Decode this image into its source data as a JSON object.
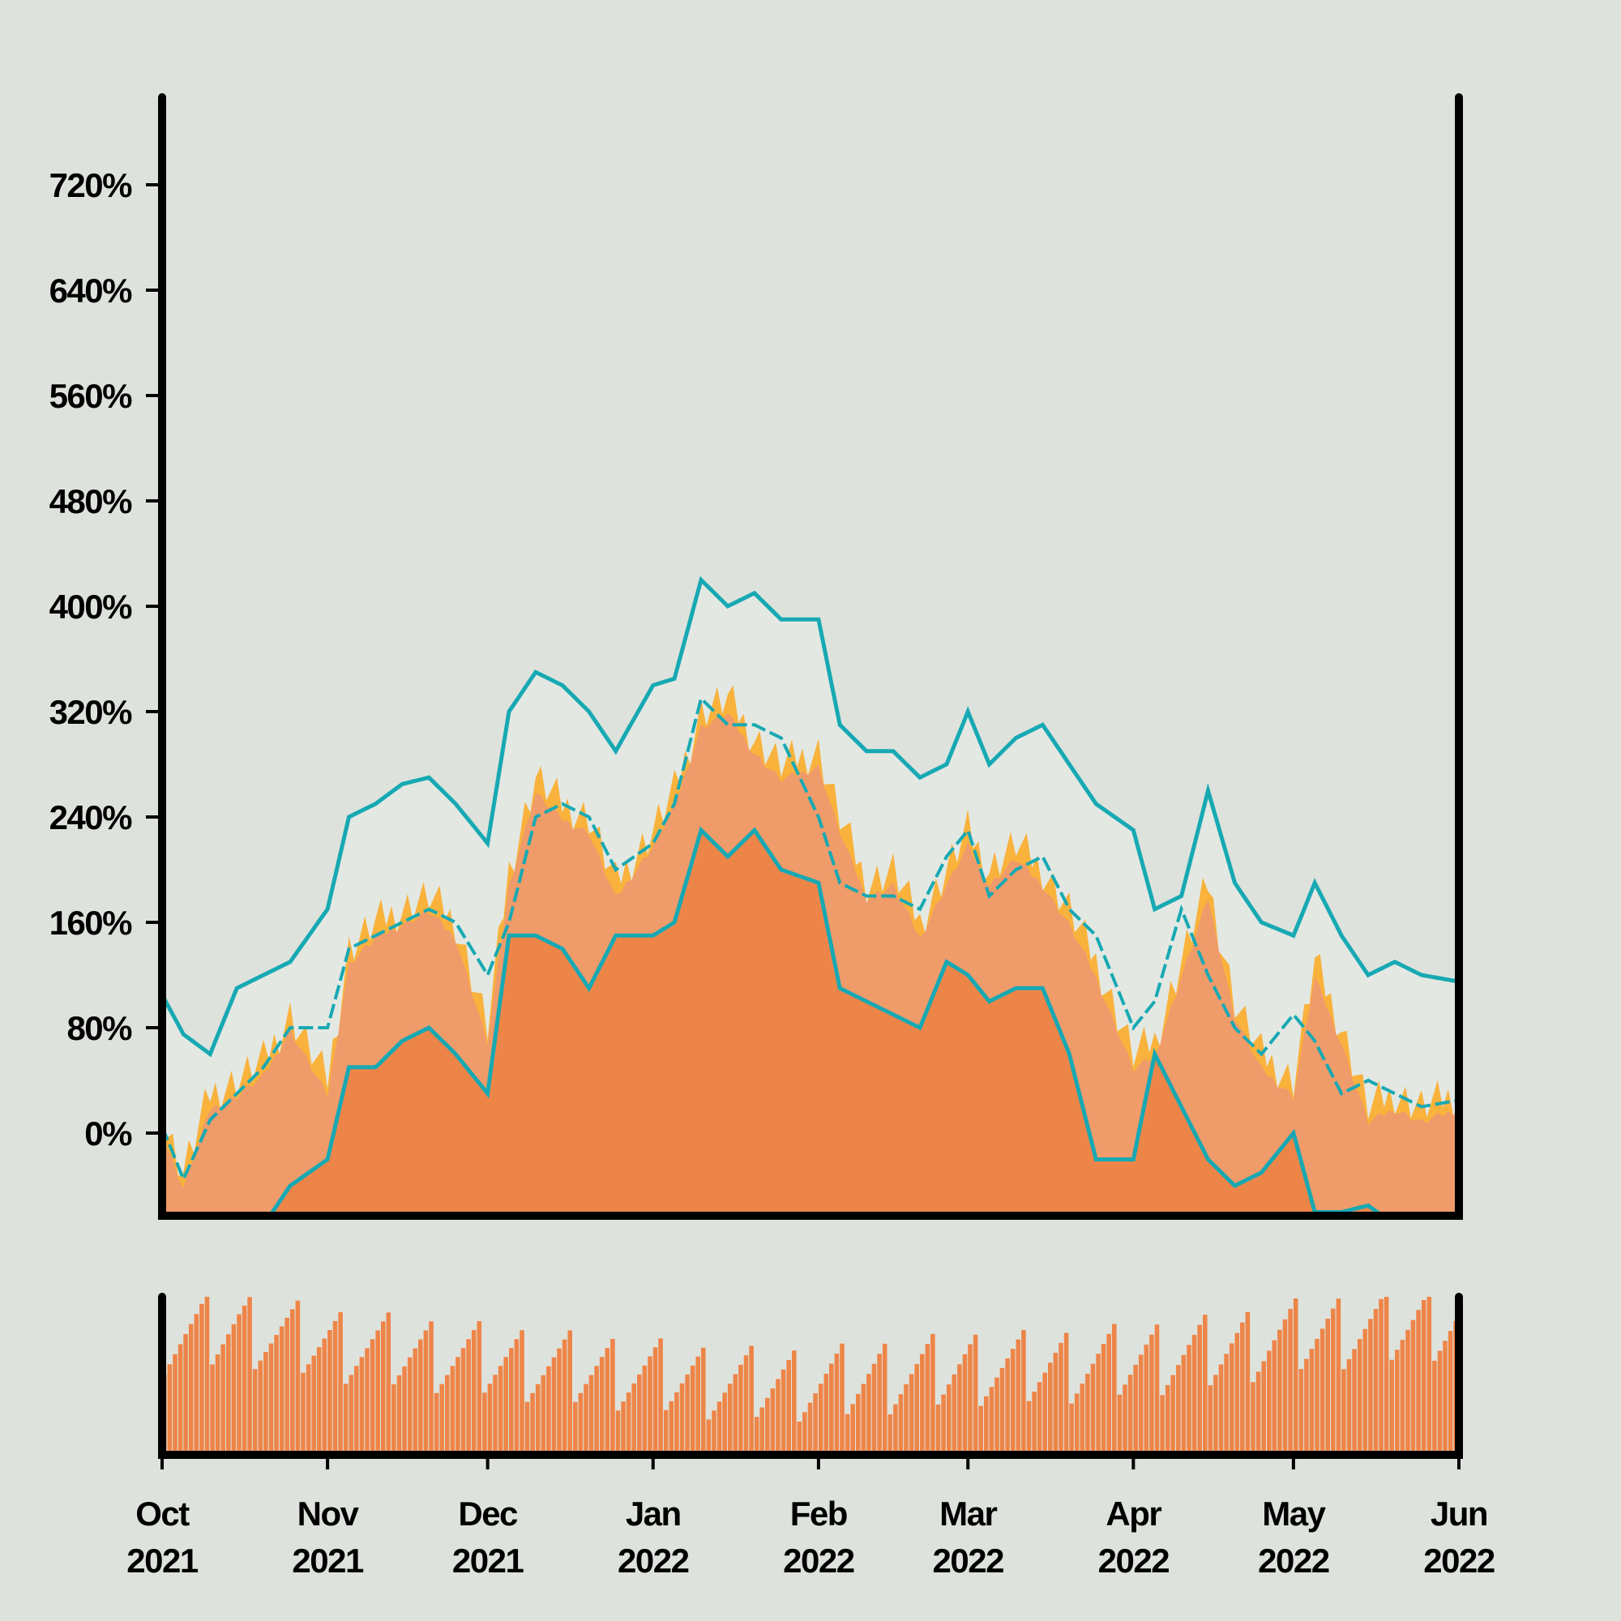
{
  "chart_data": {
    "type": "area",
    "title": "",
    "xlabel": "",
    "ylabel": "",
    "x_range": [
      "2021-10-01",
      "2022-06-01"
    ],
    "ylim": [
      -60,
      720
    ],
    "grid": false,
    "y_ticks": [
      {
        "value": 0,
        "label": "0%"
      },
      {
        "value": 80,
        "label": "80%"
      },
      {
        "value": 160,
        "label": "160%"
      },
      {
        "value": 240,
        "label": "240%"
      },
      {
        "value": 320,
        "label": "320%"
      },
      {
        "value": 400,
        "label": "400%"
      },
      {
        "value": 480,
        "label": "480%"
      },
      {
        "value": 560,
        "label": "560%"
      },
      {
        "value": 640,
        "label": "640%"
      },
      {
        "value": 720,
        "label": "720%"
      }
    ],
    "x_ticks": [
      {
        "date": "2021-10-01",
        "month": "Oct",
        "year": "2021"
      },
      {
        "date": "2021-11-01",
        "month": "Nov",
        "year": "2021"
      },
      {
        "date": "2021-12-01",
        "month": "Dec",
        "year": "2021"
      },
      {
        "date": "2022-01-01",
        "month": "Jan",
        "year": "2022"
      },
      {
        "date": "2022-02-01",
        "month": "Feb",
        "year": "2022"
      },
      {
        "date": "2022-03-01",
        "month": "Mar",
        "year": "2022"
      },
      {
        "date": "2022-04-01",
        "month": "Apr",
        "year": "2022"
      },
      {
        "date": "2022-05-01",
        "month": "May",
        "year": "2022"
      },
      {
        "date": "2022-06-01",
        "month": "Jun",
        "year": "2022"
      }
    ],
    "series": [
      {
        "role": "daily-value",
        "x": [
          "2021-10-01",
          "2021-10-05",
          "2021-10-10",
          "2021-10-15",
          "2021-10-20",
          "2021-10-25",
          "2021-11-01",
          "2021-11-05",
          "2021-11-10",
          "2021-11-15",
          "2021-11-20",
          "2021-11-25",
          "2021-12-01",
          "2021-12-05",
          "2021-12-10",
          "2021-12-15",
          "2021-12-20",
          "2021-12-25",
          "2022-01-01",
          "2022-01-05",
          "2022-01-10",
          "2022-01-15",
          "2022-01-20",
          "2022-01-25",
          "2022-02-01",
          "2022-02-05",
          "2022-02-10",
          "2022-02-15",
          "2022-02-20",
          "2022-02-25",
          "2022-03-01",
          "2022-03-05",
          "2022-03-10",
          "2022-03-15",
          "2022-03-20",
          "2022-03-25",
          "2022-04-01",
          "2022-04-05",
          "2022-04-10",
          "2022-04-15",
          "2022-04-20",
          "2022-04-25",
          "2022-05-01",
          "2022-05-05",
          "2022-05-10",
          "2022-05-15",
          "2022-05-20",
          "2022-05-25",
          "2022-06-01"
        ],
        "values": [
          10,
          -30,
          30,
          40,
          55,
          90,
          40,
          140,
          160,
          170,
          180,
          160,
          80,
          200,
          270,
          250,
          240,
          190,
          230,
          260,
          320,
          330,
          300,
          280,
          290,
          240,
          190,
          200,
          160,
          200,
          230,
          200,
          220,
          200,
          170,
          130,
          60,
          70,
          130,
          190,
          100,
          60,
          40,
          130,
          80,
          20,
          30,
          20,
          30
        ]
      },
      {
        "role": "rolling-average",
        "x": [
          "2021-10-01",
          "2021-10-05",
          "2021-10-10",
          "2021-10-15",
          "2021-10-20",
          "2021-10-25",
          "2021-11-01",
          "2021-11-05",
          "2021-11-10",
          "2021-11-15",
          "2021-11-20",
          "2021-11-25",
          "2021-12-01",
          "2021-12-05",
          "2021-12-10",
          "2021-12-15",
          "2021-12-20",
          "2021-12-25",
          "2022-01-01",
          "2022-01-05",
          "2022-01-10",
          "2022-01-15",
          "2022-01-20",
          "2022-01-25",
          "2022-02-01",
          "2022-02-05",
          "2022-02-10",
          "2022-02-15",
          "2022-02-20",
          "2022-02-25",
          "2022-03-01",
          "2022-03-05",
          "2022-03-10",
          "2022-03-15",
          "2022-03-20",
          "2022-03-25",
          "2022-04-01",
          "2022-04-05",
          "2022-04-10",
          "2022-04-15",
          "2022-04-20",
          "2022-04-25",
          "2022-05-01",
          "2022-05-05",
          "2022-05-10",
          "2022-05-15",
          "2022-05-20",
          "2022-05-25",
          "2022-06-01"
        ],
        "values": [
          5,
          -35,
          10,
          30,
          50,
          80,
          80,
          140,
          150,
          160,
          170,
          160,
          120,
          160,
          240,
          250,
          240,
          200,
          220,
          250,
          330,
          310,
          310,
          300,
          240,
          190,
          180,
          180,
          170,
          210,
          230,
          180,
          200,
          210,
          170,
          150,
          80,
          100,
          170,
          120,
          80,
          60,
          90,
          70,
          30,
          40,
          30,
          20,
          25
        ]
      },
      {
        "role": "upper-band",
        "x": [
          "2021-10-01",
          "2021-10-05",
          "2021-10-10",
          "2021-10-15",
          "2021-10-20",
          "2021-10-25",
          "2021-11-01",
          "2021-11-05",
          "2021-11-10",
          "2021-11-15",
          "2021-11-20",
          "2021-11-25",
          "2021-12-01",
          "2021-12-05",
          "2021-12-10",
          "2021-12-15",
          "2021-12-20",
          "2021-12-25",
          "2022-01-01",
          "2022-01-05",
          "2022-01-10",
          "2022-01-15",
          "2022-01-20",
          "2022-01-25",
          "2022-02-01",
          "2022-02-05",
          "2022-02-10",
          "2022-02-15",
          "2022-02-20",
          "2022-02-25",
          "2022-03-01",
          "2022-03-05",
          "2022-03-10",
          "2022-03-15",
          "2022-03-20",
          "2022-03-25",
          "2022-04-01",
          "2022-04-05",
          "2022-04-10",
          "2022-04-15",
          "2022-04-20",
          "2022-04-25",
          "2022-05-01",
          "2022-05-05",
          "2022-05-10",
          "2022-05-15",
          "2022-05-20",
          "2022-05-25",
          "2022-06-01"
        ],
        "values": [
          105,
          75,
          60,
          110,
          120,
          130,
          170,
          240,
          250,
          265,
          270,
          250,
          220,
          320,
          350,
          340,
          320,
          290,
          340,
          345,
          420,
          400,
          410,
          390,
          390,
          310,
          290,
          290,
          270,
          280,
          320,
          280,
          300,
          310,
          280,
          250,
          230,
          170,
          180,
          260,
          190,
          160,
          150,
          190,
          150,
          120,
          130,
          120,
          115
        ]
      },
      {
        "role": "lower-band",
        "x": [
          "2021-10-01",
          "2021-10-05",
          "2021-10-10",
          "2021-10-15",
          "2021-10-20",
          "2021-10-25",
          "2021-11-01",
          "2021-11-05",
          "2021-11-10",
          "2021-11-15",
          "2021-11-20",
          "2021-11-25",
          "2021-12-01",
          "2021-12-05",
          "2021-12-10",
          "2021-12-15",
          "2021-12-20",
          "2021-12-25",
          "2022-01-01",
          "2022-01-05",
          "2022-01-10",
          "2022-01-15",
          "2022-01-20",
          "2022-01-25",
          "2022-02-01",
          "2022-02-05",
          "2022-02-10",
          "2022-02-15",
          "2022-02-20",
          "2022-02-25",
          "2022-03-01",
          "2022-03-05",
          "2022-03-10",
          "2022-03-15",
          "2022-03-20",
          "2022-03-25",
          "2022-04-01",
          "2022-04-05",
          "2022-04-10",
          "2022-04-15",
          "2022-04-20",
          "2022-04-25",
          "2022-05-01",
          "2022-05-05",
          "2022-05-10",
          "2022-05-15",
          "2022-05-20",
          "2022-05-25",
          "2022-06-01"
        ],
        "values": [
          -95,
          -120,
          -110,
          -80,
          -70,
          -40,
          -20,
          50,
          50,
          70,
          80,
          60,
          30,
          150,
          150,
          140,
          110,
          150,
          150,
          160,
          230,
          210,
          230,
          200,
          190,
          110,
          100,
          90,
          80,
          130,
          120,
          100,
          110,
          110,
          60,
          -20,
          -20,
          60,
          20,
          -20,
          -40,
          -30,
          0,
          -60,
          -60,
          -55,
          -70,
          -80,
          -90
        ]
      },
      {
        "role": "volume",
        "x": [
          "2021-10-01",
          "2021-10-15",
          "2021-11-01",
          "2021-11-15",
          "2021-12-01",
          "2021-12-15",
          "2022-01-01",
          "2022-01-15",
          "2022-02-01",
          "2022-02-15",
          "2022-03-01",
          "2022-03-15",
          "2022-04-01",
          "2022-04-15",
          "2022-05-01",
          "2022-05-15",
          "2022-06-01"
        ],
        "values": [
          0.75,
          0.8,
          0.7,
          0.65,
          0.6,
          0.55,
          0.5,
          0.45,
          0.45,
          0.5,
          0.55,
          0.55,
          0.6,
          0.65,
          0.75,
          0.8,
          0.85
        ]
      }
    ],
    "colors": {
      "background": "#dee2dc",
      "band_fill": "#e3e8e3",
      "area_light": "#f09b6a",
      "area_dark": "#ee8548",
      "daily_spikes": "#f9b23c",
      "lines": "#17a9b3",
      "volume_bars": "#ee8548",
      "axes": "#000000"
    }
  }
}
